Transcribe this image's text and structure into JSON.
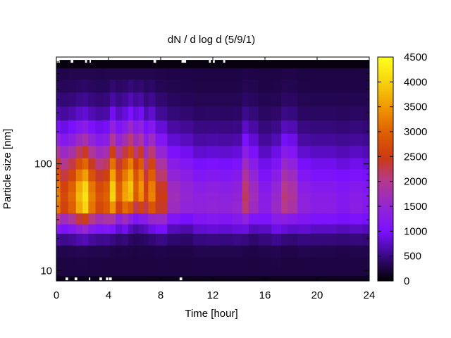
{
  "chart_data": {
    "type": "heatmap",
    "title": "dN / d log d (5/9/1)",
    "xlabel": "Time [hour]",
    "ylabel": "Particle size [nm]",
    "x_range": [
      0,
      24
    ],
    "y_range": [
      8,
      1000
    ],
    "y_scale": "log",
    "x_ticks": [
      0,
      4,
      8,
      12,
      16,
      20,
      24
    ],
    "y_ticks": [
      10,
      100
    ],
    "colorbar": {
      "ticks": [
        0,
        500,
        1000,
        1500,
        2000,
        2500,
        3000,
        3500,
        4000,
        4500
      ],
      "range": [
        0,
        4500
      ],
      "palette": "black-purple-red-yellow"
    },
    "size_bins": [
      8,
      10,
      12,
      15,
      20,
      25,
      30,
      40,
      50,
      60,
      80,
      100,
      130,
      170,
      220,
      300,
      400,
      550,
      700,
      900
    ],
    "time_hours": [
      0,
      0.6,
      1.2,
      1.8,
      2.2,
      2.7,
      3.3,
      3.9,
      4.3,
      4.8,
      5.3,
      5.7,
      6.1,
      6.5,
      6.9,
      7.2,
      8,
      9,
      10,
      11,
      12,
      13,
      14,
      14.5,
      15,
      16,
      17,
      17.5,
      18,
      19,
      20,
      21,
      22,
      23,
      24
    ],
    "peak_concentration": [
      3300,
      2700,
      3100,
      3800,
      4200,
      3300,
      2800,
      3000,
      4000,
      3000,
      3600,
      3900,
      3000,
      3500,
      2600,
      3300,
      2500,
      1700,
      1500,
      1400,
      1450,
      1400,
      1500,
      2200,
      1700,
      1300,
      1600,
      2100,
      1900,
      1400,
      1300,
      1300,
      1200,
      1300,
      1200
    ],
    "peak_size_nm": [
      45,
      45,
      45,
      45,
      45,
      45,
      45,
      45,
      50,
      50,
      50,
      55,
      55,
      55,
      50,
      50,
      45,
      45,
      45,
      40,
      40,
      40,
      40,
      45,
      45,
      40,
      40,
      45,
      45,
      40,
      40,
      40,
      40,
      40,
      40
    ]
  }
}
